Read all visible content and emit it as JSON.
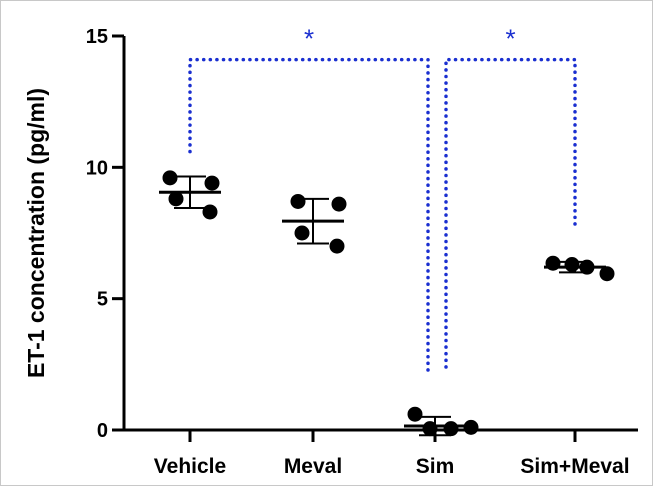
{
  "chart_data": {
    "type": "scatter",
    "title": "",
    "xlabel": "",
    "ylabel": "ET-1 concentration (pg/ml)",
    "ylim": [
      0,
      15
    ],
    "yticks": [
      0,
      5,
      10,
      15
    ],
    "grid": false,
    "legend": "none",
    "categories": [
      "Vehicle",
      "Meval",
      "Sim",
      "Sim+Meval"
    ],
    "groups": [
      {
        "category": "Vehicle",
        "points": [
          9.6,
          9.4,
          8.8,
          8.3
        ],
        "mean": 9.05,
        "sd": 0.6
      },
      {
        "category": "Meval",
        "points": [
          8.7,
          8.6,
          7.5,
          7.0
        ],
        "mean": 7.95,
        "sd": 0.85
      },
      {
        "category": "Sim",
        "points": [
          0.6,
          0.05,
          0.05,
          0.1
        ],
        "mean": 0.15,
        "sd": 0.35
      },
      {
        "category": "Sim+Meval",
        "points": [
          6.35,
          6.3,
          6.2,
          5.95
        ],
        "mean": 6.2,
        "sd": 0.2
      }
    ],
    "significance": [
      {
        "from": "Vehicle",
        "to": "Sim",
        "label": "*",
        "from_y": 10.6,
        "to_y": 2.1,
        "bar_y": 14.1
      },
      {
        "from": "Sim",
        "to": "Sim+Meval",
        "label": "*",
        "from_y": 2.4,
        "to_y": 7.7,
        "bar_y": 14.1
      }
    ],
    "colors": {
      "points": "#000000",
      "significance": "#1a2fd0",
      "axis": "#000000"
    }
  }
}
